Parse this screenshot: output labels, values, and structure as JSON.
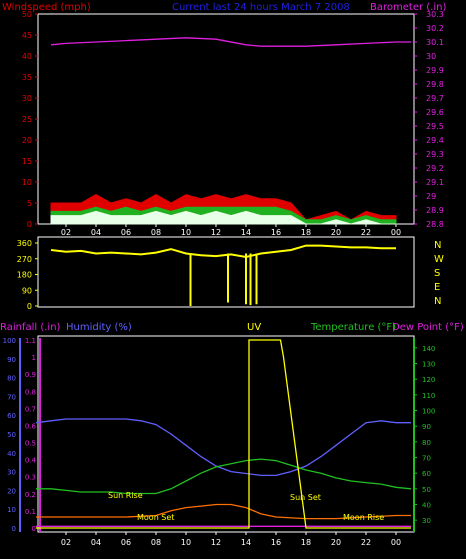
{
  "chart_data": [
    {
      "type": "line",
      "title": "Current last 24 hours March 7 2008",
      "left_axis_label": "Windspeed (mph)",
      "right_axis_label": "Barometer (.in)",
      "x_ticks": [
        "02",
        "04",
        "06",
        "08",
        "10",
        "12",
        "14",
        "16",
        "18",
        "20",
        "22",
        "00"
      ],
      "y_left_ticks": [
        "0",
        "5",
        "10",
        "15",
        "20",
        "25",
        "30",
        "35",
        "40",
        "45",
        "50"
      ],
      "y_left_range": [
        0,
        50
      ],
      "y_right_ticks": [
        "28.8",
        "28.9",
        "29",
        "29.1",
        "29.2",
        "29.3",
        "29.4",
        "29.5",
        "29.6",
        "29.7",
        "29.8",
        "29.9",
        "30",
        "30.1",
        "30.2",
        "30.3"
      ],
      "y_right_range": [
        28.8,
        30.3
      ],
      "series": [
        {
          "color": "#e00000",
          "x": [
            1,
            2,
            3,
            4,
            5,
            6,
            7,
            8,
            9,
            10,
            11,
            12,
            13,
            14,
            15,
            16,
            17,
            18,
            19,
            20,
            21,
            22,
            23,
            24
          ],
          "y": [
            5,
            5,
            5,
            7,
            5,
            6,
            5,
            7,
            5,
            7,
            6,
            7,
            6,
            7,
            6,
            6,
            5,
            1,
            2,
            3,
            1,
            3,
            2,
            2
          ]
        },
        {
          "color": "#20b020",
          "x": [
            1,
            2,
            3,
            4,
            5,
            6,
            7,
            8,
            9,
            10,
            11,
            12,
            13,
            14,
            15,
            16,
            17,
            18,
            19,
            20,
            21,
            22,
            23,
            24
          ],
          "y": [
            3,
            3,
            3,
            4,
            3,
            4,
            3,
            4,
            3,
            4,
            4,
            4,
            4,
            4,
            4,
            4,
            3,
            1,
            1,
            2,
            1,
            2,
            1,
            1
          ]
        },
        {
          "color": "#e8ffe8",
          "x": [
            1,
            2,
            3,
            4,
            5,
            6,
            7,
            8,
            9,
            10,
            11,
            12,
            13,
            14,
            15,
            16,
            17,
            18,
            19,
            20,
            21,
            22,
            23,
            24
          ],
          "y": [
            2,
            2,
            2,
            3,
            2,
            2,
            2,
            3,
            2,
            3,
            2,
            3,
            2,
            3,
            2,
            2,
            2,
            0,
            0,
            1,
            0,
            1,
            0,
            0
          ]
        },
        {
          "color": "#e020e0",
          "x": [
            1,
            2,
            4,
            6,
            8,
            10,
            12,
            14,
            15,
            16,
            18,
            20,
            22,
            24,
            25
          ],
          "y": [
            30.08,
            30.09,
            30.1,
            30.11,
            30.12,
            30.13,
            30.12,
            30.08,
            30.07,
            30.07,
            30.07,
            30.08,
            30.09,
            30.1,
            30.1
          ]
        }
      ]
    },
    {
      "type": "scatter",
      "x_ticks": [
        "02",
        "04",
        "06",
        "08",
        "10",
        "12",
        "14",
        "16",
        "18",
        "20",
        "22",
        "00"
      ],
      "y_left_ticks": [
        "0",
        "90",
        "180",
        "270",
        "360"
      ],
      "y_left_range": [
        0,
        360
      ],
      "right_labels": [
        "N",
        "W",
        "S",
        "E",
        "N"
      ],
      "series": [
        {
          "color": "#ffff00",
          "x": [
            1,
            2,
            3,
            4,
            5,
            6,
            7,
            8,
            9,
            10,
            11,
            12,
            13,
            14,
            15,
            16,
            17,
            18,
            19,
            20,
            21,
            22,
            23,
            24
          ],
          "y": [
            320,
            310,
            315,
            300,
            305,
            300,
            295,
            305,
            325,
            300,
            290,
            285,
            295,
            280,
            300,
            310,
            320,
            345,
            345,
            340,
            335,
            335,
            330,
            330
          ]
        }
      ],
      "dips_x": [
        10.3,
        12.8,
        14.0,
        14.3,
        14.7
      ],
      "dips_y": [
        0,
        20,
        10,
        5,
        10
      ]
    },
    {
      "type": "line",
      "left_axis_label": "Rainfall (.in)",
      "left2_axis_label": "Humidity (%)",
      "center_label": "UV",
      "right_axis_label": "Temperature (°F)",
      "right2_axis_label": "Dew Point (°F)",
      "x_ticks": [
        "02",
        "04",
        "06",
        "08",
        "10",
        "12",
        "14",
        "16",
        "18",
        "20",
        "22",
        "00"
      ],
      "rain_ticks": [
        "0",
        "0.1",
        "0.2",
        "0.3",
        "0.4",
        "0.5",
        "0.6",
        "0.7",
        "0.8",
        "0.9",
        "1",
        "1.1"
      ],
      "rain_range": [
        0,
        1.1
      ],
      "humidity_ticks": [
        "0",
        "10",
        "20",
        "30",
        "40",
        "50",
        "60",
        "70",
        "80",
        "90",
        "100"
      ],
      "humidity_range": [
        0,
        100
      ],
      "temp_ticks": [
        "30",
        "40",
        "50",
        "60",
        "70",
        "80",
        "90",
        "100",
        "110",
        "120",
        "130",
        "140"
      ],
      "temp_range": [
        25,
        145
      ],
      "annotations": [
        "Sun Rise",
        "Sun Set",
        "Moon Set",
        "Moon Rise"
      ],
      "series": [
        {
          "color": "#6060ff",
          "x": [
            0,
            1,
            2,
            3,
            4,
            5,
            6,
            7,
            8,
            9,
            10,
            11,
            12,
            13,
            14,
            15,
            16,
            17,
            18,
            19,
            20,
            21,
            22,
            23,
            24,
            25
          ],
          "y": [
            56,
            57,
            58,
            58,
            58,
            58,
            58,
            57,
            55,
            50,
            44,
            38,
            33,
            30,
            29,
            28,
            28,
            30,
            33,
            38,
            44,
            50,
            56,
            57,
            56,
            56
          ]
        },
        {
          "color": "#20c020",
          "x": [
            0,
            1,
            2,
            3,
            4,
            5,
            6,
            7,
            8,
            9,
            10,
            11,
            12,
            13,
            14,
            15,
            16,
            17,
            18,
            19,
            20,
            21,
            22,
            23,
            24,
            25
          ],
          "y": [
            50,
            50,
            49,
            48,
            48,
            48,
            47,
            47,
            47,
            50,
            55,
            60,
            64,
            66,
            68,
            69,
            68,
            65,
            62,
            60,
            57,
            55,
            54,
            53,
            51,
            50
          ]
        },
        {
          "color": "#ff7000",
          "x": [
            0,
            2,
            4,
            6,
            8,
            9,
            10,
            11,
            12,
            13,
            14,
            15,
            16,
            18,
            20,
            22,
            24,
            25
          ],
          "y": [
            32,
            32,
            32,
            32,
            33,
            36,
            38,
            39,
            40,
            40,
            38,
            34,
            32,
            31,
            31,
            32,
            33,
            33
          ]
        },
        {
          "color": "#e020e0",
          "x": [
            0,
            2,
            4,
            6,
            8,
            10,
            12,
            14,
            16,
            18,
            20,
            22,
            24,
            25
          ],
          "y": [
            0.01,
            0.01,
            0.01,
            0.01,
            0.01,
            0.01,
            0.01,
            0.01,
            0.01,
            0.01,
            0.01,
            0.01,
            0.01,
            0.01
          ]
        },
        {
          "color": "#ffff00",
          "x": [
            0,
            14.2,
            14.2,
            16.3,
            16.5,
            18,
            25
          ],
          "y": [
            0,
            0,
            1.1,
            1.1,
            1.0,
            0,
            0
          ]
        }
      ]
    }
  ]
}
